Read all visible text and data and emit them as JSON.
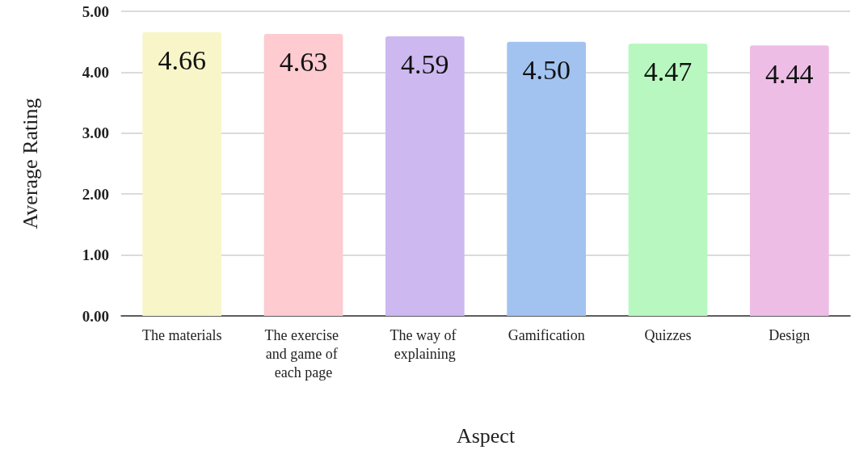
{
  "chart_data": {
    "type": "bar",
    "xlabel": "Aspect",
    "ylabel": "Average Rating",
    "categories": [
      "The materials",
      "The exercise and game of each page",
      "The way of explaining",
      "Gamification",
      "Quizzes",
      "Design"
    ],
    "values": [
      4.66,
      4.63,
      4.59,
      4.5,
      4.47,
      4.44
    ],
    "value_labels": [
      "4.66",
      "4.63",
      "4.59",
      "4.50",
      "4.47",
      "4.44"
    ],
    "colors": [
      "#f8f6c9",
      "#fdcbd0",
      "#cdb8f0",
      "#a2c3f0",
      "#b8f8c0",
      "#eebde6"
    ],
    "ylim": [
      0,
      5
    ],
    "yticks": [
      {
        "value": 0,
        "label": "0.00"
      },
      {
        "value": 1,
        "label": "1.00"
      },
      {
        "value": 2,
        "label": "2.00"
      },
      {
        "value": 3,
        "label": "3.00"
      },
      {
        "value": 4,
        "label": "4.00"
      },
      {
        "value": 5,
        "label": "5.00"
      }
    ],
    "grid": "y"
  }
}
